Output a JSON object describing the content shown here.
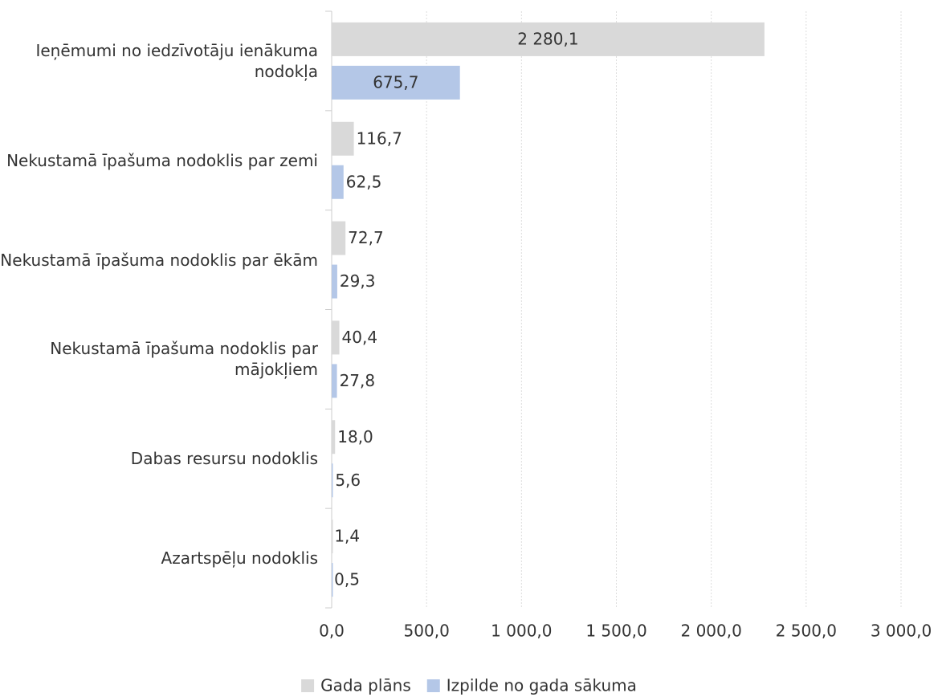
{
  "chart_data": {
    "type": "bar",
    "orientation": "horizontal",
    "categories": [
      "Ieņēmumi no iedzīvotāju ienākuma nodokļa",
      "Nekustamā īpašuma nodoklis par zemi",
      "Nekustamā īpašuma nodoklis par ēkām",
      "Nekustamā īpašuma nodoklis par mājokļiem",
      "Dabas resursu nodoklis",
      "Azartspēļu nodoklis"
    ],
    "series": [
      {
        "name": "Gada plāns",
        "color": "#d9d9d9",
        "values": [
          2280.1,
          116.7,
          72.7,
          40.4,
          18.0,
          1.4
        ],
        "value_labels": [
          "2 280,1",
          "116,7",
          "72,7",
          "40,4",
          "18,0",
          "1,4"
        ]
      },
      {
        "name": "Izpilde no gada sākuma",
        "color": "#b4c7e7",
        "values": [
          675.7,
          62.5,
          29.3,
          27.8,
          5.6,
          0.5
        ],
        "value_labels": [
          "675,7",
          "62,5",
          "29,3",
          "27,8",
          "5,6",
          "0,5"
        ]
      }
    ],
    "xlim": [
      0,
      3000
    ],
    "xticks": [
      {
        "value": 0,
        "label": "0,0"
      },
      {
        "value": 500,
        "label": "500,0"
      },
      {
        "value": 1000,
        "label": "1 000,0"
      },
      {
        "value": 1500,
        "label": "1 500,0"
      },
      {
        "value": 2000,
        "label": "2 000,0"
      },
      {
        "value": 2500,
        "label": "2 500,0"
      },
      {
        "value": 3000,
        "label": "3 000,0"
      }
    ],
    "grid": true,
    "legend": "bottom"
  }
}
